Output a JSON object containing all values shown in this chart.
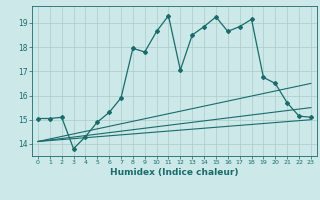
{
  "title": "",
  "xlabel": "Humidex (Indice chaleur)",
  "bg_color": "#cce8e8",
  "grid_color": "#aacccc",
  "line_color": "#1a6b6b",
  "xlim": [
    -0.5,
    23.5
  ],
  "ylim": [
    13.5,
    19.7
  ],
  "yticks": [
    14,
    15,
    16,
    17,
    18,
    19
  ],
  "xticks": [
    0,
    1,
    2,
    3,
    4,
    5,
    6,
    7,
    8,
    9,
    10,
    11,
    12,
    13,
    14,
    15,
    16,
    17,
    18,
    19,
    20,
    21,
    22,
    23
  ],
  "main_line": {
    "x": [
      0,
      1,
      2,
      3,
      4,
      5,
      6,
      7,
      8,
      9,
      10,
      11,
      12,
      13,
      14,
      15,
      16,
      17,
      18,
      19,
      20,
      21,
      22,
      23
    ],
    "y": [
      15.05,
      15.05,
      15.1,
      13.8,
      14.3,
      14.9,
      15.3,
      15.9,
      17.95,
      17.8,
      18.65,
      19.3,
      17.05,
      18.5,
      18.85,
      19.25,
      18.65,
      18.85,
      19.15,
      16.75,
      16.5,
      15.7,
      15.15,
      15.1
    ]
  },
  "lower_line1": {
    "x": [
      0,
      23
    ],
    "y": [
      14.1,
      15.0
    ]
  },
  "lower_line2": {
    "x": [
      0,
      23
    ],
    "y": [
      14.1,
      15.5
    ]
  },
  "lower_line3": {
    "x": [
      0,
      23
    ],
    "y": [
      14.1,
      16.5
    ]
  }
}
